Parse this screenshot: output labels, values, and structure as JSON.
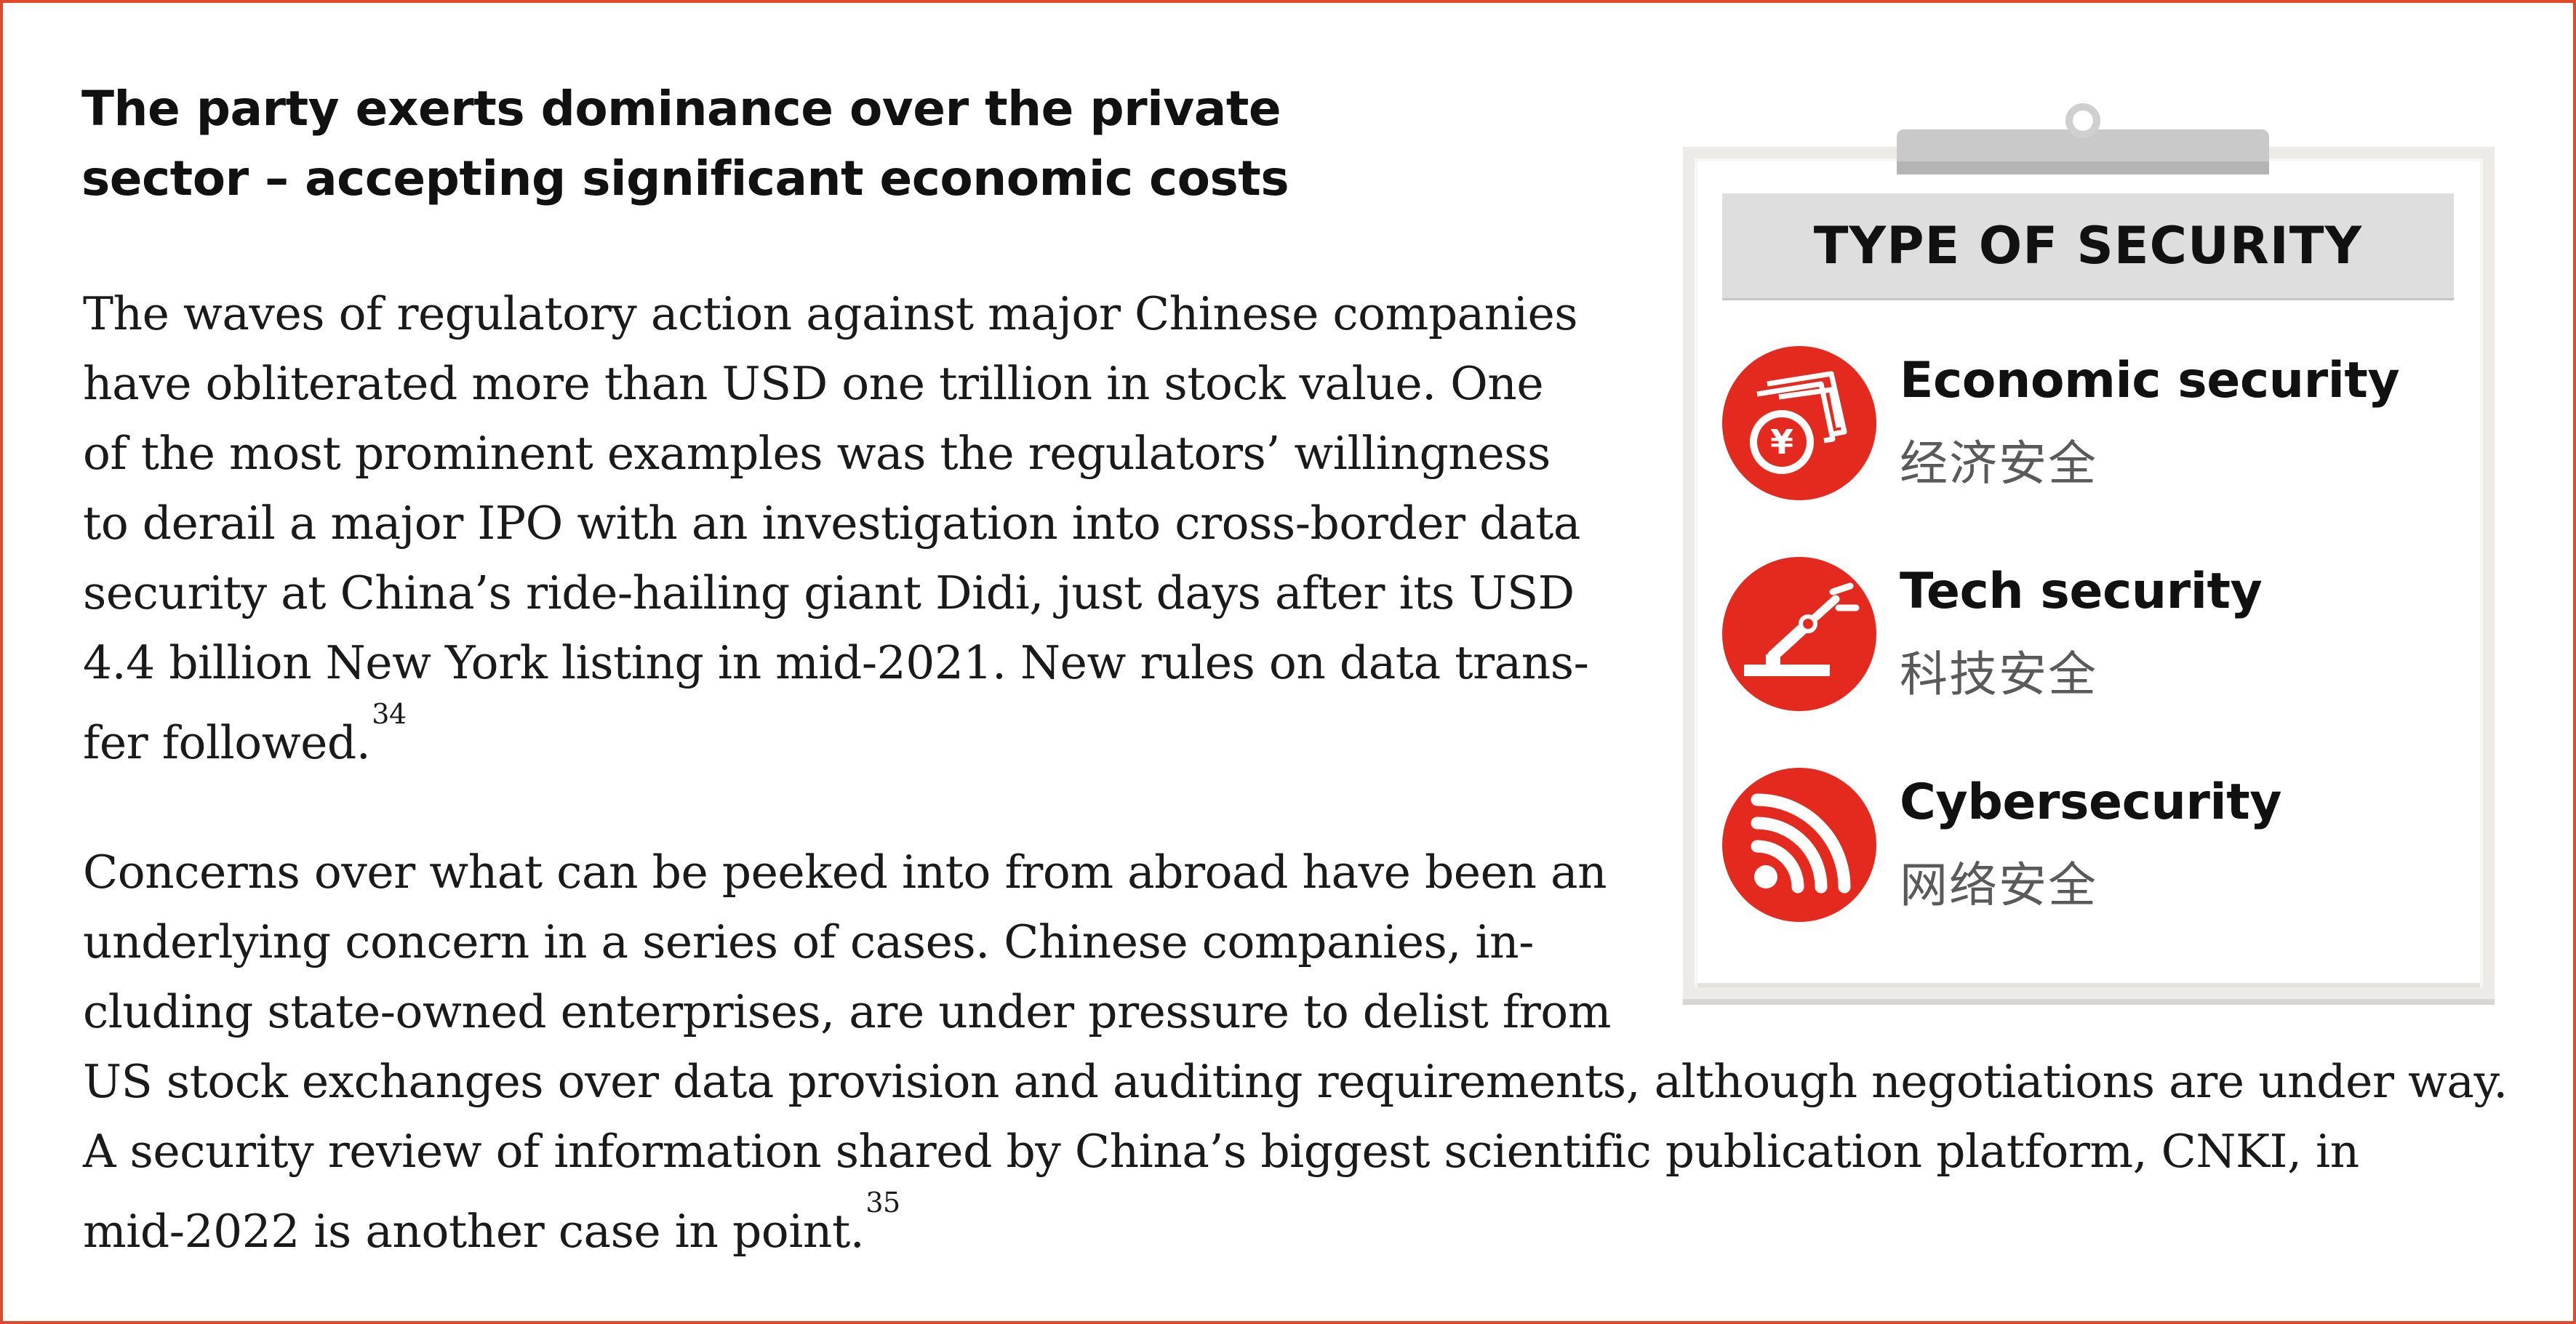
{
  "article": {
    "heading_lines": [
      "The party exerts dominance over the private",
      "sector – accepting significant economic costs"
    ],
    "paragraph1_lines": [
      "The waves of regulatory action against major Chinese companies",
      "have obliterated more than USD one trillion in stock value. One",
      "of the most prominent examples was the regulators’ willingness",
      "to derail a major IPO with an investigation into cross-border data",
      "security at China’s ride-hailing giant Didi, just days after its USD",
      "4.4 billion New York listing in mid-2021. New rules on data trans-",
      "fer followed."
    ],
    "paragraph1_footnote": "34",
    "paragraph2_lines": [
      "Concerns over what can be peeked into from abroad have been an",
      "underlying concern in a series of cases. Chinese companies, in-",
      "cluding state-owned enterprises, are under pressure to delist from",
      "US stock exchanges over data provision and auditing requirements, although negotiations are under way.",
      "A security review of information shared by China’s biggest scientific publication platform, CNKI, in",
      "mid-2022 is another case in point."
    ],
    "paragraph2_footnote": "35"
  },
  "panel": {
    "title": "TYPE OF SECURITY",
    "items": [
      {
        "label_en": "Economic security",
        "label_zh": "经济安全",
        "icon": "money-yen-icon"
      },
      {
        "label_en": "Tech security",
        "label_zh": "科技安全",
        "icon": "robot-arm-icon"
      },
      {
        "label_en": "Cybersecurity",
        "label_zh": "网络安全",
        "icon": "signal-icon"
      }
    ]
  },
  "colors": {
    "accent_red": "#e42a1e",
    "border": "#e04a2c",
    "panel_header": "#dedede"
  }
}
